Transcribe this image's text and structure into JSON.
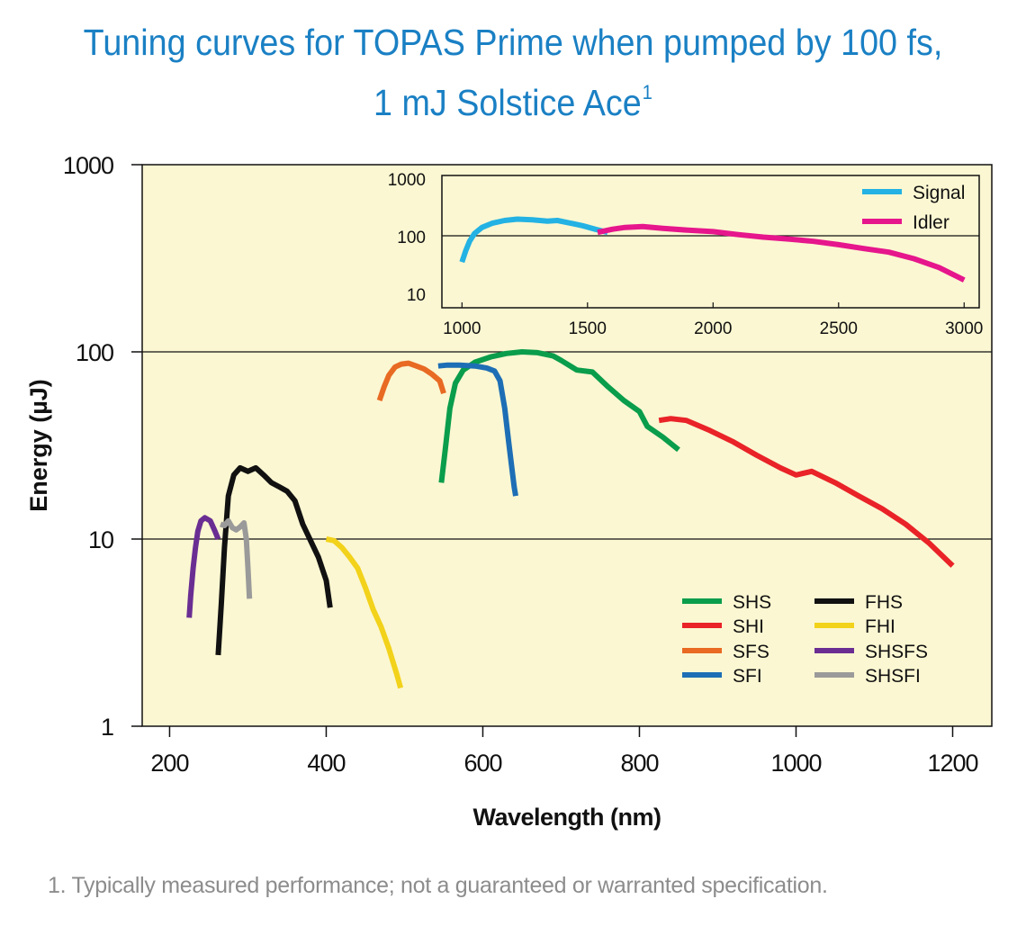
{
  "title": {
    "line1": "Tuning curves for TOPAS Prime when pumped by 100 fs,",
    "line2": "1 mJ Solstice Ace",
    "superscript": "1"
  },
  "footnote": "1. Typically measured performance; not a guaranteed or warranted specification.",
  "colors": {
    "plot_background": "#fbf7d2",
    "title": "#1a80c4",
    "SHS": "#0a9d4b",
    "SHI": "#e92328",
    "SFS": "#e86a23",
    "SFI": "#1d6eb5",
    "FHS": "#111111",
    "FHI": "#f2d21a",
    "SHSFS": "#6a2e93",
    "SHSFI": "#9a9a9a",
    "Signal": "#23b2e3",
    "Idler": "#e6168c"
  },
  "chart_data": [
    {
      "type": "line",
      "xlabel": "Wavelength (nm)",
      "ylabel": "Energy (µJ)",
      "yscale": "log",
      "xlim": [
        165,
        1250
      ],
      "ylim": [
        1,
        1000
      ],
      "xticks": [
        "200",
        "400",
        "600",
        "800",
        "1000",
        "1200"
      ],
      "yticks": [
        "1",
        "10",
        "100",
        "1000"
      ],
      "grid": "horizontal at 10 and 100",
      "legend_position": "bottom-right",
      "series": [
        {
          "name": "SHS",
          "x": [
            547,
            552,
            558,
            565,
            575,
            590,
            610,
            630,
            650,
            670,
            690,
            700,
            720,
            740,
            760,
            780,
            800,
            810,
            830,
            850
          ],
          "y": [
            20,
            30,
            50,
            68,
            80,
            88,
            94,
            98,
            100,
            99,
            95,
            90,
            80,
            78,
            65,
            55,
            48,
            40,
            35,
            30
          ]
        },
        {
          "name": "SHI",
          "x": [
            825,
            840,
            860,
            890,
            920,
            950,
            980,
            1000,
            1020,
            1050,
            1080,
            1110,
            1140,
            1170,
            1200
          ],
          "y": [
            43,
            44,
            43,
            38,
            33,
            28,
            24,
            22,
            23,
            20,
            17,
            14.5,
            12,
            9.5,
            7.2
          ]
        },
        {
          "name": "SFS",
          "x": [
            468,
            474,
            480,
            488,
            496,
            505,
            515,
            525,
            535,
            545,
            550
          ],
          "y": [
            55,
            65,
            75,
            83,
            86,
            87,
            84,
            81,
            76,
            70,
            60
          ]
        },
        {
          "name": "SFI",
          "x": [
            543,
            555,
            570,
            590,
            605,
            615,
            622,
            628,
            633,
            637,
            640,
            642
          ],
          "y": [
            84,
            85,
            85,
            84,
            82,
            79,
            70,
            50,
            33,
            24,
            19,
            17
          ]
        },
        {
          "name": "FHS",
          "x": [
            262,
            266,
            270,
            275,
            282,
            290,
            300,
            310,
            320,
            330,
            340,
            350,
            360,
            370,
            380,
            390,
            400,
            405
          ],
          "y": [
            2.4,
            4.5,
            9,
            17,
            22,
            24,
            23,
            24,
            22,
            20,
            19,
            18,
            16,
            12,
            9.8,
            8,
            6,
            4.3
          ]
        },
        {
          "name": "FHI",
          "x": [
            400,
            410,
            420,
            430,
            440,
            450,
            460,
            470,
            480,
            490,
            495
          ],
          "y": [
            10,
            9.8,
            9,
            8,
            7,
            5.5,
            4.2,
            3.4,
            2.6,
            1.9,
            1.6
          ]
        },
        {
          "name": "SHSFS",
          "x": [
            225,
            227,
            230,
            233,
            236,
            240,
            245,
            252,
            258,
            262
          ],
          "y": [
            3.8,
            5,
            7,
            9,
            11,
            12.5,
            13,
            12.5,
            11,
            10
          ]
        },
        {
          "name": "SHSFI",
          "x": [
            265,
            270,
            275,
            280,
            285,
            290,
            295,
            298,
            300,
            302
          ],
          "y": [
            12,
            11.8,
            12.5,
            11.5,
            11.2,
            11.6,
            12.2,
            10,
            7,
            4.8
          ]
        }
      ],
      "legend": {
        "col1": [
          "SHS",
          "SHI",
          "SFS",
          "SFI"
        ],
        "col2": [
          "FHS",
          "FHI",
          "SHSFS",
          "SHSFI"
        ]
      }
    },
    {
      "type": "line",
      "inset": true,
      "yscale": "log",
      "xlim": [
        920,
        3060
      ],
      "ylim": [
        5.6,
        1120
      ],
      "xticks": [
        "1000",
        "1500",
        "2000",
        "2500",
        "3000"
      ],
      "yticks": [
        "10",
        "100",
        "1000"
      ],
      "grid": "horizontal at 100",
      "legend_position": "top-right",
      "series": [
        {
          "name": "Signal",
          "x": [
            1000,
            1015,
            1030,
            1050,
            1080,
            1120,
            1170,
            1220,
            1280,
            1340,
            1380,
            1420,
            1480,
            1530,
            1580
          ],
          "y": [
            35,
            55,
            80,
            110,
            140,
            165,
            185,
            195,
            190,
            180,
            185,
            170,
            150,
            130,
            115
          ]
        },
        {
          "name": "Idler",
          "x": [
            1540,
            1600,
            1650,
            1720,
            1800,
            1900,
            2000,
            2100,
            2200,
            2300,
            2400,
            2500,
            2600,
            2700,
            2800,
            2900,
            3000
          ],
          "y": [
            115,
            130,
            140,
            145,
            135,
            125,
            118,
            105,
            95,
            88,
            80,
            70,
            60,
            52,
            40,
            28,
            17
          ]
        }
      ],
      "legend": [
        "Signal",
        "Idler"
      ]
    }
  ]
}
